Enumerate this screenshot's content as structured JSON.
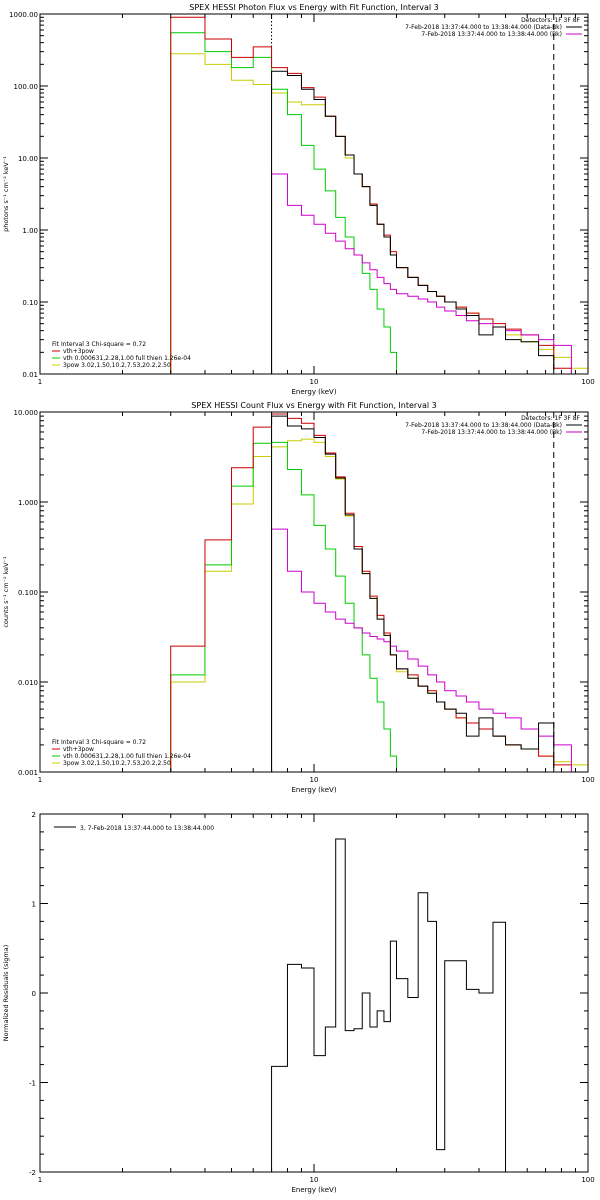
{
  "chart_data": [
    {
      "type": "line",
      "step": true,
      "title": "SPEX HESSI Photon Flux vs Energy with Fit Function, Interval 3",
      "xlabel": "Energy (keV)",
      "ylabel": "photons s⁻¹ cm⁻² keV⁻¹",
      "xscale": "log",
      "yscale": "log",
      "xlim": [
        1,
        100
      ],
      "ylim": [
        0.01,
        1000
      ],
      "x_ticks": [
        "1",
        "10",
        "100"
      ],
      "y_ticks": [
        "0.01",
        "0.10",
        "1.00",
        "10.00",
        "100.00",
        "1000.00"
      ],
      "legend_top": [
        {
          "text": "Detectors: 1F 3F 8F",
          "color": ""
        },
        {
          "text": "7-Feb-2018 13:37:44.000 to 13:38:44.000 (Data-Bk)",
          "color": "#000000"
        },
        {
          "text": "7-Feb-2018 13:37:44.000 to 13:38:44.000 (Bk)",
          "color": "#cc00cc"
        }
      ],
      "legend_bottom": [
        {
          "text": "Fit Interval 3   Chi-square = 0.72",
          "color": ""
        },
        {
          "text": "vth+3pow",
          "color": "#cc0000"
        },
        {
          "text": "vth 0.000631,2.28,1.00   full thien 1.26e-04",
          "color": "#00cc00"
        },
        {
          "text": "3pow 3.02,1.50,10.2,7.53,20.2,2.50",
          "color": "#cccc00"
        }
      ],
      "vlines": [
        {
          "x": 7.0,
          "style": "dotted",
          "color": "#000000"
        },
        {
          "x": 75.0,
          "style": "dashed",
          "color": "#000000"
        }
      ],
      "edges": [
        3.0,
        4.0,
        5.0,
        6.0,
        7.0,
        8.0,
        9.0,
        10.0,
        11.0,
        12.0,
        13.0,
        14.0,
        15.0,
        16.0,
        17.0,
        18.0,
        19.0,
        20.0,
        22.0,
        24.0,
        26.0,
        28.0,
        30.0,
        33.0,
        36.0,
        40.0,
        45.0,
        50.0,
        57.0,
        66.0,
        75.0,
        87.0,
        100.0
      ],
      "series": [
        {
          "name": "vth+3pow",
          "color": "#cc0000",
          "values": [
            900,
            450,
            250,
            350,
            180,
            150,
            95,
            70,
            38,
            20,
            11,
            6,
            4,
            2.3,
            1.2,
            0.85,
            0.5,
            0.3,
            0.22,
            0.17,
            0.14,
            0.12,
            0.1,
            0.085,
            0.07,
            0.058,
            0.05,
            0.042,
            0.035,
            0.025,
            0.012,
            null
          ]
        },
        {
          "name": "vth",
          "color": "#00cc00",
          "values": [
            550,
            300,
            180,
            250,
            90,
            40,
            15,
            7,
            3.5,
            1.5,
            0.8,
            0.45,
            0.25,
            0.15,
            0.08,
            0.045,
            0.02,
            null,
            null,
            null,
            null,
            null,
            null,
            null,
            null,
            null,
            null,
            null,
            null,
            null,
            null,
            null
          ]
        },
        {
          "name": "3pow",
          "color": "#cccc00",
          "values": [
            280,
            200,
            120,
            105,
            80,
            60,
            55,
            55,
            38,
            20,
            10,
            6,
            4,
            2.2,
            1.2,
            0.8,
            0.45,
            0.3,
            0.22,
            0.17,
            0.14,
            0.12,
            0.1,
            0.085,
            0.07,
            0.058,
            0.045,
            0.035,
            0.028,
            0.022,
            0.017,
            0.012
          ]
        },
        {
          "name": "Data-Bk",
          "color": "#000000",
          "values": [
            null,
            null,
            null,
            null,
            160,
            140,
            90,
            65,
            38,
            20,
            11,
            6,
            4,
            2.2,
            1.2,
            0.8,
            0.45,
            0.3,
            0.22,
            0.17,
            0.14,
            0.12,
            0.1,
            0.08,
            0.065,
            0.035,
            0.045,
            0.03,
            0.028,
            0.018,
            null,
            null
          ]
        },
        {
          "name": "Bk",
          "color": "#cc00cc",
          "values": [
            null,
            null,
            null,
            null,
            6,
            2.2,
            1.6,
            1.2,
            0.9,
            0.7,
            0.55,
            0.45,
            0.35,
            0.28,
            0.22,
            0.18,
            0.15,
            0.13,
            0.12,
            0.11,
            0.1,
            0.085,
            0.075,
            0.065,
            0.055,
            0.05,
            0.045,
            0.04,
            0.035,
            0.03,
            0.025,
            null
          ]
        }
      ]
    },
    {
      "type": "line",
      "step": true,
      "title": "SPEX HESSI Count Flux vs Energy with Fit Function, Interval 3",
      "xlabel": "Energy (keV)",
      "ylabel": "counts s⁻¹ cm⁻² keV⁻¹",
      "xscale": "log",
      "yscale": "log",
      "xlim": [
        1,
        100
      ],
      "ylim": [
        0.001,
        10
      ],
      "x_ticks": [
        "1",
        "10",
        "100"
      ],
      "y_ticks": [
        "0.001",
        "0.010",
        "0.100",
        "1.000",
        "10.000"
      ],
      "legend_top": [
        {
          "text": "Detectors: 1F 3F 8F",
          "color": ""
        },
        {
          "text": "7-Feb-2018 13:37:44.000 to 13:38:44.000 (Data-Bk)",
          "color": "#000000"
        },
        {
          "text": "7-Feb-2018 13:37:44.000 to 13:38:44.000 (Bk)",
          "color": "#cc00cc"
        }
      ],
      "legend_bottom": [
        {
          "text": "Fit Interval 3   Chi-square = 0.72",
          "color": ""
        },
        {
          "text": "vth+3pow",
          "color": "#cc0000"
        },
        {
          "text": "vth 0.000631,2.28,1.00   full thien 1.26e-04",
          "color": "#00cc00"
        },
        {
          "text": "3pow 3.02,1.50,10.2,7.53,20.2,2.50",
          "color": "#cccc00"
        }
      ],
      "vlines": [
        {
          "x": 7.0,
          "style": "dotted",
          "color": "#000000"
        },
        {
          "x": 75.0,
          "style": "dashed",
          "color": "#000000"
        }
      ],
      "edges": [
        3.0,
        4.0,
        5.0,
        6.0,
        7.0,
        8.0,
        9.0,
        10.0,
        11.0,
        12.0,
        13.0,
        14.0,
        15.0,
        16.0,
        17.0,
        18.0,
        19.0,
        20.0,
        22.0,
        24.0,
        26.0,
        28.0,
        30.0,
        33.0,
        36.0,
        40.0,
        45.0,
        50.0,
        57.0,
        66.0,
        75.0,
        87.0,
        100.0
      ],
      "series": [
        {
          "name": "vth+3pow",
          "color": "#cc0000",
          "values": [
            0.025,
            0.38,
            2.4,
            6.8,
            9.5,
            8.5,
            7.5,
            5.5,
            3.5,
            1.9,
            0.75,
            0.32,
            0.17,
            0.09,
            0.055,
            0.035,
            0.02,
            0.014,
            0.012,
            0.009,
            0.008,
            0.006,
            0.005,
            0.004,
            0.0035,
            0.003,
            0.0025,
            0.002,
            0.0018,
            0.0015,
            0.0012,
            null
          ]
        },
        {
          "name": "vth",
          "color": "#00cc00",
          "values": [
            0.012,
            0.2,
            1.5,
            4.5,
            4.6,
            2.3,
            1.2,
            0.55,
            0.3,
            0.15,
            0.075,
            0.04,
            0.02,
            0.011,
            0.006,
            0.003,
            0.0015,
            null,
            null,
            null,
            null,
            null,
            null,
            null,
            null,
            null,
            null,
            null,
            null,
            null,
            null,
            null
          ]
        },
        {
          "name": "3pow",
          "color": "#cccc00",
          "values": [
            0.01,
            0.17,
            0.95,
            3.2,
            4.1,
            4.8,
            5.0,
            4.6,
            3.2,
            1.8,
            0.7,
            0.3,
            0.16,
            0.085,
            0.05,
            0.033,
            0.02,
            0.013,
            0.011,
            0.009,
            0.0075,
            0.006,
            0.005,
            0.004,
            0.0035,
            0.003,
            0.0025,
            0.002,
            0.0018,
            0.0015,
            0.0013,
            0.0012
          ]
        },
        {
          "name": "Data-Bk",
          "color": "#000000",
          "values": [
            null,
            null,
            null,
            null,
            9.0,
            7.0,
            6.5,
            5.2,
            3.4,
            1.85,
            0.72,
            0.3,
            0.16,
            0.085,
            0.05,
            0.033,
            0.02,
            0.014,
            0.011,
            0.009,
            0.0075,
            0.006,
            0.005,
            0.0045,
            0.0025,
            0.004,
            0.0025,
            0.002,
            0.0018,
            0.0035,
            null,
            null
          ]
        },
        {
          "name": "Bk",
          "color": "#cc00cc",
          "values": [
            null,
            null,
            null,
            null,
            0.5,
            0.17,
            0.1,
            0.075,
            0.06,
            0.05,
            0.045,
            0.04,
            0.035,
            0.032,
            0.03,
            0.028,
            0.025,
            0.022,
            0.018,
            0.015,
            0.012,
            0.01,
            0.008,
            0.007,
            0.006,
            0.005,
            0.0045,
            0.004,
            0.003,
            0.0025,
            0.002,
            null
          ]
        }
      ]
    },
    {
      "type": "line",
      "step": true,
      "title": "",
      "xlabel": "Energy (keV)",
      "ylabel": "Normalized Residuals (sigma)",
      "xscale": "log",
      "yscale": "linear",
      "xlim": [
        1,
        100
      ],
      "ylim": [
        -2,
        2
      ],
      "x_ticks": [
        "1",
        "10",
        "100"
      ],
      "y_ticks": [
        "-2",
        "-1",
        "0",
        "1",
        "2"
      ],
      "legend_top": [
        {
          "text": "3,  7-Feb-2018 13:37:44.000 to 13:38:44.000",
          "color": "#000000"
        }
      ],
      "edges": [
        7.0,
        8.0,
        9.0,
        10.0,
        11.0,
        12.0,
        13.0,
        14.0,
        15.0,
        16.0,
        17.0,
        18.0,
        19.0,
        20.0,
        22.0,
        24.0,
        26.0,
        28.0,
        30.0,
        33.0,
        36.0,
        40.0,
        45.0,
        50.0,
        57.0,
        66.0,
        75.0
      ],
      "series": [
        {
          "name": "3,  7-Feb-2018 13:37:44.000 to 13:38:44.000",
          "color": "#000000",
          "values": [
            -0.82,
            0.32,
            0.28,
            -0.7,
            -0.38,
            1.72,
            -0.42,
            -0.4,
            0.0,
            -0.38,
            -0.2,
            -0.32,
            0.58,
            0.16,
            -0.05,
            1.12,
            0.8,
            -1.75,
            0.36,
            0.36,
            0.04,
            0.0,
            0.79,
            -2.0,
            -2.0,
            -2.0
          ]
        }
      ]
    }
  ]
}
